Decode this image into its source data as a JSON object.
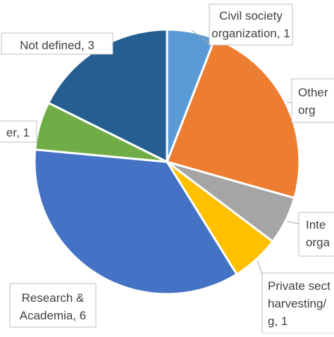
{
  "chart_data": {
    "type": "pie",
    "title": "",
    "slices": [
      {
        "label_lines": [
          "Civil society",
          "organization, 1"
        ],
        "value": 1,
        "color": "#5B9BD5"
      },
      {
        "label_lines": [
          "Other",
          "org"
        ],
        "value": 4,
        "color": "#ED7D31"
      },
      {
        "label_lines": [
          "Inte",
          "orga"
        ],
        "value": 1,
        "color": "#A5A5A5"
      },
      {
        "label_lines": [
          "Private sect",
          "harvesting/",
          "g, 1"
        ],
        "value": 1,
        "color": "#FFC000"
      },
      {
        "label_lines": [
          "Research &",
          "Academia, 6"
        ],
        "value": 6,
        "color": "#4472C4"
      },
      {
        "label_lines": [
          "er, 1"
        ],
        "value": 1,
        "color": "#70AD47"
      },
      {
        "label_lines": [
          "Not defined, 3"
        ],
        "value": 3,
        "color": "#255E91"
      }
    ]
  }
}
